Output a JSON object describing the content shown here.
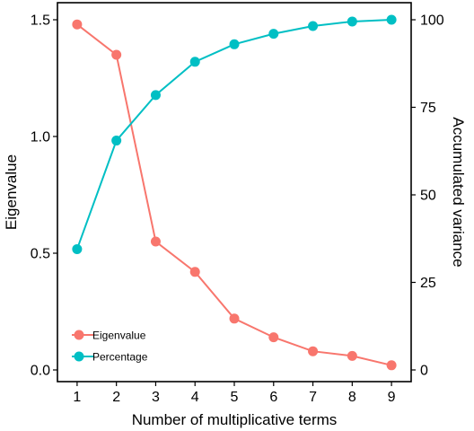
{
  "chart_data": {
    "type": "line",
    "x": [
      1,
      2,
      3,
      4,
      5,
      6,
      7,
      8,
      9
    ],
    "xlabel": "Number of multiplicative terms",
    "ylabel": "Eigenvalue",
    "y2label": "Accumulated variance",
    "xlim": [
      0.5,
      9.5
    ],
    "ylim": [
      0,
      1.5
    ],
    "y2lim": [
      0,
      100
    ],
    "x_ticks": [
      "1",
      "2",
      "3",
      "4",
      "5",
      "6",
      "7",
      "8",
      "9"
    ],
    "y_ticks": [
      "0.0",
      "0.5",
      "1.0",
      "1.5"
    ],
    "y2_ticks": [
      "0",
      "25",
      "50",
      "75",
      "100"
    ],
    "grid": false,
    "legend_position": "bottom-left",
    "series": [
      {
        "name": "Eigenvalue",
        "axis": "left",
        "color": "#F8766D",
        "values": [
          1.48,
          1.35,
          0.55,
          0.42,
          0.22,
          0.14,
          0.08,
          0.06,
          0.02
        ]
      },
      {
        "name": "Percentage",
        "axis": "right",
        "color": "#00BFC4",
        "values": [
          34.5,
          65.5,
          78.5,
          88,
          93,
          96,
          98.2,
          99.5,
          100
        ]
      }
    ]
  }
}
